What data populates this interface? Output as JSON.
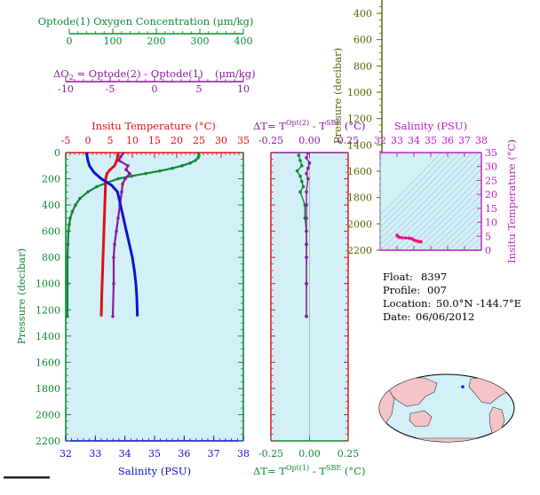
{
  "colors": {
    "oxygen": "#118833",
    "delta_o2": "#8a1a9a",
    "temperature": "#dd1111",
    "salinity": "#1111cc",
    "pressure_axis": "#556600",
    "sal_temp_axis": "#bb22bb",
    "delta_t": "#118833",
    "plot_bg": "#d3f0f8",
    "trace_magenta": "#ee1188"
  },
  "oxygen_axis": {
    "title": "Optode(1) Oxygen Concentration (μm/kg)",
    "ticks": [
      "0",
      "100",
      "200",
      "300",
      "400"
    ]
  },
  "delta_o2_axis": {
    "title_left": "ΔO",
    "title_sub": "2",
    "title_right": " = Optode(2) - Optode(1)",
    "units": "(μm/kg)",
    "ticks": [
      "-10",
      "-5",
      "0",
      "5",
      "10"
    ]
  },
  "temperature_axis": {
    "title": "Insitu Temperature (°C)",
    "ticks": [
      "-5",
      "0",
      "5",
      "10",
      "15",
      "20",
      "25",
      "30",
      "35"
    ]
  },
  "salinity_axis": {
    "title": "Salinity (PSU)",
    "ticks": [
      "32",
      "33",
      "34",
      "35",
      "36",
      "37",
      "38"
    ]
  },
  "pressure_axis": {
    "title": "Pressure (decibar)",
    "ticks": [
      "0",
      "200",
      "400",
      "600",
      "800",
      "1000",
      "1200",
      "1400",
      "1600",
      "1800",
      "2000",
      "2200"
    ]
  },
  "right_pressure_axis": {
    "title": "Pressure (decibar)",
    "ticks": [
      "400",
      "600",
      "800",
      "1000",
      "1200",
      "1400",
      "1600",
      "1800",
      "2000",
      "2200"
    ]
  },
  "delta_t_top_axis": {
    "title_prefix": "ΔT= T",
    "title_sup1": "Opt(2)",
    "title_mid": " - T",
    "title_sup2": "SBE",
    "title_suffix": " (°C)",
    "ticks": [
      "-0.25",
      "0.00",
      "0.25"
    ]
  },
  "delta_t_bottom_axis": {
    "title_prefix": "ΔT= T",
    "title_sup1": "Opt(1)",
    "title_mid": " - T",
    "title_sup2": "SBE",
    "title_suffix": " (°C)",
    "ticks": [
      "-0.25",
      "0.00",
      "0.25"
    ]
  },
  "ts_axes": {
    "x_title": "Salinity (PSU)",
    "x_ticks": [
      "32",
      "33",
      "34",
      "35",
      "36",
      "37",
      "38"
    ],
    "y_title": "Insitu Temperature (°C)",
    "y_ticks": [
      "0",
      "5",
      "10",
      "15",
      "20",
      "25",
      "30",
      "35"
    ]
  },
  "info": {
    "float_label": "Float:",
    "float_value": "8397",
    "profile_label": "Profile:",
    "profile_value": "007",
    "location_label": "Location:",
    "location_value": "50.0°N  -144.7°E",
    "date_label": "Date:",
    "date_value": "06/06/2012"
  },
  "chart_data": [
    {
      "type": "line",
      "name": "profiles",
      "y_axis": "Pressure (decibar)",
      "ylim": [
        2200,
        0
      ],
      "series": [
        {
          "name": "Optode(1) Oxygen Concentration (μm/kg)",
          "axis": "oxygen",
          "xlim": [
            0,
            400
          ],
          "markers": true,
          "points": [
            [
              299,
              0
            ],
            [
              300,
              20
            ],
            [
              298,
              40
            ],
            [
              292,
              60
            ],
            [
              280,
              80
            ],
            [
              262,
              100
            ],
            [
              240,
              120
            ],
            [
              212,
              140
            ],
            [
              180,
              160
            ],
            [
              148,
              180
            ],
            [
              118,
              200
            ],
            [
              92,
              230
            ],
            [
              70,
              260
            ],
            [
              50,
              300
            ],
            [
              32,
              350
            ],
            [
              22,
              400
            ],
            [
              15,
              450
            ],
            [
              10,
              500
            ],
            [
              8,
              550
            ],
            [
              6,
              600
            ],
            [
              5,
              700
            ],
            [
              4,
              800
            ],
            [
              4,
              1000
            ],
            [
              4,
              1250
            ]
          ]
        },
        {
          "name": "ΔO2 = Optode(2) - Optode(1) (μm/kg)",
          "axis": "delta_o2",
          "xlim": [
            -10,
            10
          ],
          "markers": true,
          "points": [
            [
              -3.5,
              0
            ],
            [
              -3.8,
              30
            ],
            [
              -4.0,
              60
            ],
            [
              -3.0,
              100
            ],
            [
              -3.2,
              130
            ],
            [
              -2.8,
              160
            ],
            [
              -3.3,
              200
            ],
            [
              -3.6,
              240
            ],
            [
              -3.7,
              300
            ],
            [
              -3.9,
              400
            ],
            [
              -4.1,
              500
            ],
            [
              -4.3,
              600
            ],
            [
              -4.5,
              700
            ],
            [
              -4.6,
              800
            ],
            [
              -4.6,
              1000
            ],
            [
              -4.7,
              1250
            ]
          ]
        },
        {
          "name": "Insitu Temperature (°C)",
          "axis": "temperature",
          "xlim": [
            -5,
            35
          ],
          "markers": false,
          "points": [
            [
              6.8,
              0
            ],
            [
              6.6,
              50
            ],
            [
              6.0,
              100
            ],
            [
              5.0,
              130
            ],
            [
              4.3,
              160
            ],
            [
              4.0,
              200
            ],
            [
              3.9,
              300
            ],
            [
              3.8,
              400
            ],
            [
              3.7,
              500
            ],
            [
              3.6,
              600
            ],
            [
              3.5,
              700
            ],
            [
              3.4,
              800
            ],
            [
              3.3,
              900
            ],
            [
              3.2,
              1000
            ],
            [
              3.1,
              1100
            ],
            [
              3.0,
              1250
            ]
          ]
        },
        {
          "name": "Salinity (PSU)",
          "axis": "salinity",
          "xlim": [
            32,
            38
          ],
          "markers": false,
          "points": [
            [
              32.7,
              0
            ],
            [
              32.75,
              60
            ],
            [
              32.8,
              100
            ],
            [
              32.95,
              150
            ],
            [
              33.2,
              200
            ],
            [
              33.55,
              250
            ],
            [
              33.75,
              300
            ],
            [
              33.85,
              400
            ],
            [
              33.95,
              500
            ],
            [
              34.05,
              600
            ],
            [
              34.15,
              700
            ],
            [
              34.25,
              800
            ],
            [
              34.32,
              900
            ],
            [
              34.37,
              1000
            ],
            [
              34.4,
              1100
            ],
            [
              34.42,
              1250
            ]
          ]
        }
      ]
    },
    {
      "type": "scatter",
      "name": "delta_t",
      "xlim": [
        -0.25,
        0.25
      ],
      "ylim": [
        2200,
        0
      ],
      "series": [
        {
          "name": "ΔT= T Opt(1) - T SBE (°C)",
          "points": [
            [
              -0.07,
              20
            ],
            [
              -0.06,
              60
            ],
            [
              -0.05,
              100
            ],
            [
              -0.08,
              140
            ],
            [
              -0.06,
              180
            ],
            [
              -0.05,
              220
            ],
            [
              -0.04,
              260
            ],
            [
              -0.06,
              300
            ],
            [
              -0.03,
              400
            ],
            [
              -0.03,
              500
            ],
            [
              -0.02,
              600
            ],
            [
              -0.02,
              700
            ],
            [
              -0.02,
              800
            ],
            [
              -0.02,
              1000
            ],
            [
              -0.02,
              1250
            ]
          ]
        },
        {
          "name": "ΔT= T Opt(2) - T SBE (°C)",
          "points": [
            [
              -0.01,
              0
            ],
            [
              -0.02,
              40
            ],
            [
              0.0,
              80
            ],
            [
              -0.01,
              120
            ],
            [
              -0.02,
              160
            ],
            [
              -0.01,
              200
            ],
            [
              -0.02,
              300
            ],
            [
              -0.02,
              400
            ],
            [
              -0.02,
              500
            ],
            [
              -0.02,
              600
            ],
            [
              -0.02,
              700
            ],
            [
              -0.02,
              800
            ],
            [
              -0.02,
              1000
            ],
            [
              -0.02,
              1250
            ]
          ]
        }
      ]
    },
    {
      "type": "scatter",
      "name": "ts_diagram",
      "x_label": "Salinity (PSU)",
      "y_label": "Insitu Temperature (°C)",
      "xlim": [
        32,
        38
      ],
      "ylim": [
        0,
        35
      ],
      "grid": "density contours",
      "points": [
        [
          33.0,
          5.4
        ],
        [
          33.05,
          4.9
        ],
        [
          33.15,
          4.6
        ],
        [
          33.3,
          4.45
        ],
        [
          33.5,
          4.4
        ],
        [
          33.7,
          4.3
        ],
        [
          33.85,
          4.2
        ],
        [
          33.95,
          3.8
        ],
        [
          34.05,
          3.5
        ],
        [
          34.15,
          3.3
        ],
        [
          34.25,
          3.15
        ],
        [
          34.35,
          3.05
        ],
        [
          34.42,
          3.0
        ]
      ]
    }
  ]
}
